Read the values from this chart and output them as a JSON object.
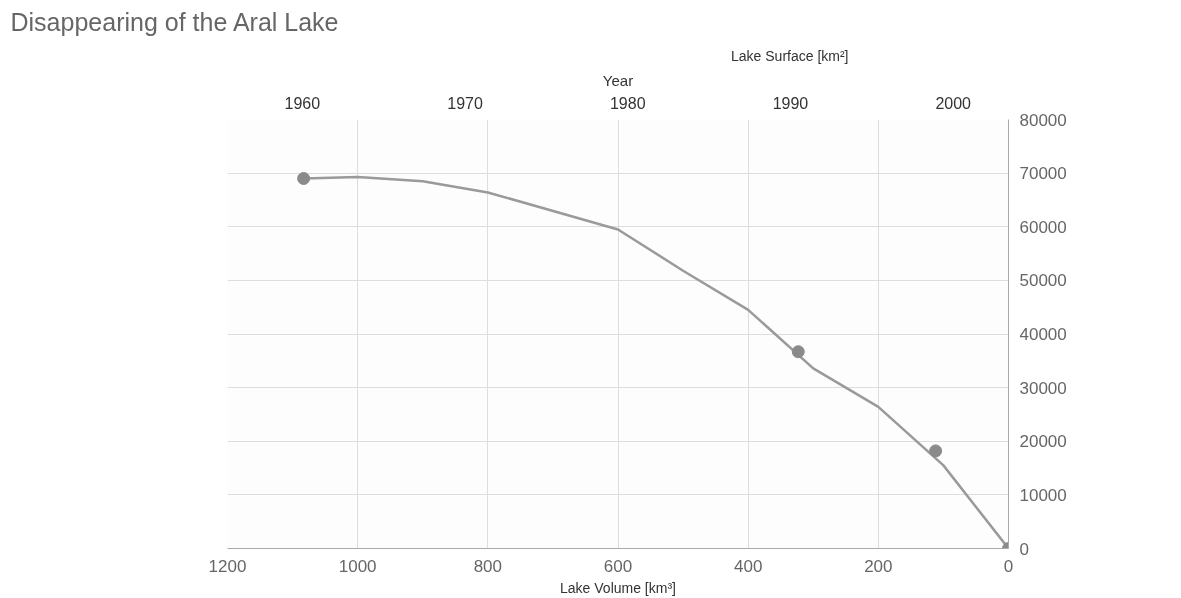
{
  "chart_data": {
    "type": "scatter",
    "title": "Disappearing of the Aral Lake",
    "xlabel": "Lake Volume [km³]",
    "ylabel": "Lake Surface [km²]",
    "x2label": "Year",
    "xlim": [
      1200,
      0
    ],
    "xticks": [
      1200,
      1000,
      800,
      600,
      400,
      200,
      0
    ],
    "x2lim": [
      1955.4,
      2003.4
    ],
    "x2ticks": [
      1960,
      1970,
      1980,
      1990,
      2000
    ],
    "ylim": [
      0,
      80000
    ],
    "yticks": [
      0,
      10000,
      20000,
      30000,
      40000,
      50000,
      60000,
      70000,
      80000
    ],
    "grid": true,
    "series": [
      {
        "type": "line",
        "color": "#9a9a9a",
        "x": [
          1083,
          1000,
          900,
          800,
          600,
          500,
          400,
          300,
          200,
          100,
          0
        ],
        "values": [
          69000,
          69300,
          68500,
          66400,
          59500,
          51800,
          44500,
          33600,
          26400,
          15500,
          0
        ]
      },
      {
        "marker": "circle",
        "color": "#8a8a8a",
        "x": [
          1083,
          323,
          112,
          0
        ],
        "values": [
          69000,
          36700,
          18200,
          0
        ]
      }
    ]
  }
}
